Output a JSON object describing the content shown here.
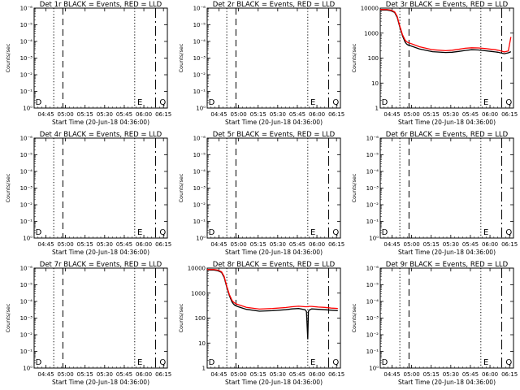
{
  "figure": {
    "background": "#ffffff",
    "colors": {
      "events": "#000000",
      "lld": "#ff0000"
    }
  },
  "chart_data": [
    {
      "type": "line",
      "title": "Det 1r BLACK = Events, RED = LLD",
      "xlabel": "Start Time (20-Jun-18 04:36:00)",
      "ylabel": "Counts/sec",
      "xtick_labels": [
        "04:45",
        "05:00",
        "05:15",
        "05:30",
        "05:45",
        "06:00",
        "06:15"
      ],
      "x_range_minutes": [
        0,
        102
      ],
      "y_scale": "log",
      "ytick_labels": [
        "10⁰",
        "10⁻¹",
        "10⁻²",
        "10⁻³",
        "10⁻⁴",
        "10⁻⁵",
        "10⁻⁶"
      ],
      "ylim": [
        1e-06,
        1.0
      ],
      "vlines": [
        {
          "style": "dotted",
          "x": 15
        },
        {
          "style": "dashed",
          "x": 22
        },
        {
          "style": "dotted",
          "x": 77
        },
        {
          "style": "longdash",
          "x": 93
        }
      ],
      "markers": [
        {
          "label": "D",
          "x": 1
        },
        {
          "label": "E",
          "x": 79
        },
        {
          "label": "Q",
          "x": 96
        }
      ],
      "series": []
    },
    {
      "type": "line",
      "title": "Det 2r BLACK = Events, RED = LLD",
      "xlabel": "Start Time (20-Jun-18 04:36:00)",
      "ylabel": "Counts/sec",
      "xtick_labels": [
        "04:45",
        "05:00",
        "05:15",
        "05:30",
        "05:45",
        "06:00",
        "06:15"
      ],
      "x_range_minutes": [
        0,
        102
      ],
      "y_scale": "log",
      "ytick_labels": [
        "10⁰",
        "10⁻¹",
        "10⁻²",
        "10⁻³",
        "10⁻⁴",
        "10⁻⁵",
        "10⁻⁶"
      ],
      "ylim": [
        1e-06,
        1.0
      ],
      "vlines": [
        {
          "style": "dotted",
          "x": 15
        },
        {
          "style": "dashed",
          "x": 22
        },
        {
          "style": "dotted",
          "x": 77
        },
        {
          "style": "longdash",
          "x": 93
        }
      ],
      "markers": [
        {
          "label": "D",
          "x": 1
        },
        {
          "label": "E",
          "x": 79
        },
        {
          "label": "Q",
          "x": 96
        }
      ],
      "series": []
    },
    {
      "type": "line",
      "title": "Det 3r BLACK = Events, RED = LLD",
      "xlabel": "Start Time (20-Jun-18 04:36:00)",
      "ylabel": "Counts/sec",
      "xtick_labels": [
        "04:45",
        "05:00",
        "05:15",
        "05:30",
        "05:45",
        "06:00",
        "06:15"
      ],
      "x_range_minutes": [
        0,
        102
      ],
      "y_scale": "log",
      "ytick_labels": [
        "1",
        "10",
        "100",
        "1000",
        "10000"
      ],
      "ylim": [
        1,
        12000
      ],
      "vlines": [
        {
          "style": "dotted",
          "x": 15
        },
        {
          "style": "dashed",
          "x": 22
        },
        {
          "style": "dotted",
          "x": 77
        },
        {
          "style": "longdash",
          "x": 93
        }
      ],
      "markers": [
        {
          "label": "D",
          "x": 1
        },
        {
          "label": "E",
          "x": 79
        },
        {
          "label": "Q",
          "x": 96
        }
      ],
      "series": [
        {
          "color": "#000000",
          "x": [
            0,
            5,
            8,
            11,
            13,
            15,
            17,
            19,
            20,
            21,
            23,
            30,
            40,
            50,
            55,
            60,
            65,
            70,
            75,
            80,
            85,
            88,
            90,
            93,
            95,
            98,
            100
          ],
          "y": [
            10000,
            10000,
            9500,
            8000,
            5000,
            2000,
            900,
            500,
            420,
            380,
            350,
            260,
            200,
            185,
            190,
            205,
            225,
            240,
            235,
            220,
            205,
            195,
            190,
            175,
            165,
            180,
            200
          ]
        },
        {
          "color": "#ff0000",
          "x": [
            0,
            5,
            8,
            11,
            13,
            15,
            17,
            19,
            20,
            21,
            23,
            30,
            40,
            50,
            55,
            60,
            65,
            70,
            75,
            80,
            85,
            88,
            90,
            93,
            95,
            98,
            100
          ],
          "y": [
            10500,
            10500,
            10000,
            8500,
            5500,
            2200,
            1000,
            600,
            520,
            480,
            440,
            320,
            240,
            220,
            230,
            250,
            275,
            290,
            285,
            270,
            250,
            240,
            230,
            210,
            195,
            215,
            800
          ]
        }
      ]
    },
    {
      "type": "line",
      "title": "Det 4r BLACK = Events, RED = LLD",
      "xlabel": "Start Time (20-Jun-18 04:36:00)",
      "ylabel": "Counts/sec",
      "xtick_labels": [
        "04:45",
        "05:00",
        "05:15",
        "05:30",
        "05:45",
        "06:00",
        "06:15"
      ],
      "x_range_minutes": [
        0,
        102
      ],
      "y_scale": "log",
      "ytick_labels": [
        "10⁰",
        "10⁻¹",
        "10⁻²",
        "10⁻³",
        "10⁻⁴",
        "10⁻⁵",
        "10⁻⁶"
      ],
      "ylim": [
        1e-06,
        1.0
      ],
      "vlines": [
        {
          "style": "dotted",
          "x": 15
        },
        {
          "style": "dashed",
          "x": 22
        },
        {
          "style": "dotted",
          "x": 77
        },
        {
          "style": "longdash",
          "x": 93
        }
      ],
      "markers": [
        {
          "label": "D",
          "x": 1
        },
        {
          "label": "E",
          "x": 79
        },
        {
          "label": "Q",
          "x": 96
        }
      ],
      "series": []
    },
    {
      "type": "line",
      "title": "Det 5r BLACK = Events, RED = LLD",
      "xlabel": "Start Time (20-Jun-18 04:36:00)",
      "ylabel": "Counts/sec",
      "xtick_labels": [
        "04:45",
        "05:00",
        "05:15",
        "05:30",
        "05:45",
        "06:00",
        "06:15"
      ],
      "x_range_minutes": [
        0,
        102
      ],
      "y_scale": "log",
      "ytick_labels": [
        "10⁰",
        "10⁻¹",
        "10⁻²",
        "10⁻³",
        "10⁻⁴",
        "10⁻⁵",
        "10⁻⁶"
      ],
      "ylim": [
        1e-06,
        1.0
      ],
      "vlines": [
        {
          "style": "dotted",
          "x": 15
        },
        {
          "style": "dashed",
          "x": 22
        },
        {
          "style": "dotted",
          "x": 77
        },
        {
          "style": "longdash",
          "x": 93
        }
      ],
      "markers": [
        {
          "label": "D",
          "x": 1
        },
        {
          "label": "E",
          "x": 79
        },
        {
          "label": "Q",
          "x": 96
        }
      ],
      "series": []
    },
    {
      "type": "line",
      "title": "Det 6r BLACK = Events, RED = LLD",
      "xlabel": "Start Time (20-Jun-18 04:36:00)",
      "ylabel": "Counts/sec",
      "xtick_labels": [
        "04:45",
        "05:00",
        "05:15",
        "05:30",
        "05:45",
        "06:00",
        "06:15"
      ],
      "x_range_minutes": [
        0,
        102
      ],
      "y_scale": "log",
      "ytick_labels": [
        "10⁰",
        "10⁻¹",
        "10⁻²",
        "10⁻³",
        "10⁻⁴",
        "10⁻⁵",
        "10⁻⁶"
      ],
      "ylim": [
        1e-06,
        1.0
      ],
      "vlines": [
        {
          "style": "dotted",
          "x": 15
        },
        {
          "style": "dashed",
          "x": 22
        },
        {
          "style": "dotted",
          "x": 77
        },
        {
          "style": "longdash",
          "x": 93
        }
      ],
      "markers": [
        {
          "label": "D",
          "x": 1
        },
        {
          "label": "E",
          "x": 79
        },
        {
          "label": "Q",
          "x": 96
        }
      ],
      "series": []
    },
    {
      "type": "line",
      "title": "Det 7r BLACK = Events, RED = LLD",
      "xlabel": "Start Time (20-Jun-18 04:36:00)",
      "ylabel": "Counts/sec",
      "xtick_labels": [
        "04:45",
        "05:00",
        "05:15",
        "05:30",
        "05:45",
        "06:00",
        "06:15"
      ],
      "x_range_minutes": [
        0,
        102
      ],
      "y_scale": "log",
      "ytick_labels": [
        "10⁰",
        "10⁻¹",
        "10⁻²",
        "10⁻³",
        "10⁻⁴",
        "10⁻⁵",
        "10⁻⁶"
      ],
      "ylim": [
        1e-06,
        1.0
      ],
      "vlines": [
        {
          "style": "dotted",
          "x": 15
        },
        {
          "style": "dashed",
          "x": 22
        },
        {
          "style": "dotted",
          "x": 77
        },
        {
          "style": "longdash",
          "x": 93
        }
      ],
      "markers": [
        {
          "label": "D",
          "x": 1
        },
        {
          "label": "E",
          "x": 79
        },
        {
          "label": "Q",
          "x": 96
        }
      ],
      "series": []
    },
    {
      "type": "line",
      "title": "Det 8r BLACK = Events, RED = LLD",
      "xlabel": "Start Time (20-Jun-18 04:36:00)",
      "ylabel": "Counts/sec",
      "xtick_labels": [
        "04:45",
        "05:00",
        "05:15",
        "05:30",
        "05:45",
        "06:00",
        "06:15"
      ],
      "x_range_minutes": [
        0,
        102
      ],
      "y_scale": "log",
      "ytick_labels": [
        "1",
        "10",
        "100",
        "1000",
        "10000"
      ],
      "ylim": [
        1,
        12000
      ],
      "vlines": [
        {
          "style": "dotted",
          "x": 15
        },
        {
          "style": "dashed",
          "x": 22
        },
        {
          "style": "dotted",
          "x": 77
        },
        {
          "style": "longdash",
          "x": 93
        }
      ],
      "markers": [
        {
          "label": "D",
          "x": 1
        },
        {
          "label": "E",
          "x": 79
        },
        {
          "label": "Q",
          "x": 96
        }
      ],
      "series": [
        {
          "color": "#000000",
          "x": [
            0,
            5,
            8,
            11,
            13,
            15,
            17,
            19,
            20,
            21,
            23,
            30,
            40,
            50,
            60,
            65,
            70,
            75,
            76,
            77,
            77.5,
            78,
            80,
            85,
            90,
            95,
            100
          ],
          "y": [
            10000,
            10000,
            9500,
            8000,
            5000,
            2000,
            900,
            500,
            420,
            370,
            330,
            250,
            210,
            220,
            240,
            260,
            270,
            240,
            200,
            15,
            200,
            230,
            260,
            250,
            240,
            230,
            220
          ]
        },
        {
          "color": "#ff0000",
          "x": [
            0,
            5,
            8,
            11,
            13,
            15,
            17,
            19,
            20,
            21,
            23,
            30,
            40,
            50,
            60,
            65,
            70,
            75,
            76,
            77,
            77.5,
            78,
            80,
            85,
            90,
            95,
            100
          ],
          "y": [
            10500,
            10500,
            10000,
            8500,
            5500,
            2200,
            1000,
            580,
            500,
            450,
            400,
            300,
            255,
            270,
            295,
            320,
            335,
            320,
            320,
            320,
            320,
            330,
            330,
            310,
            300,
            280,
            270
          ]
        }
      ]
    },
    {
      "type": "line",
      "title": "Det 9r BLACK = Events, RED = LLD",
      "xlabel": "Start Time (20-Jun-18 04:36:00)",
      "ylabel": "Counts/sec",
      "xtick_labels": [
        "04:45",
        "05:00",
        "05:15",
        "05:30",
        "05:45",
        "06:00",
        "06:15"
      ],
      "x_range_minutes": [
        0,
        102
      ],
      "y_scale": "log",
      "ytick_labels": [
        "10⁰",
        "10⁻¹",
        "10⁻²",
        "10⁻³",
        "10⁻⁴",
        "10⁻⁵",
        "10⁻⁶"
      ],
      "ylim": [
        1e-06,
        1.0
      ],
      "vlines": [
        {
          "style": "dotted",
          "x": 15
        },
        {
          "style": "dashed",
          "x": 22
        },
        {
          "style": "dotted",
          "x": 77
        },
        {
          "style": "longdash",
          "x": 93
        }
      ],
      "markers": [
        {
          "label": "D",
          "x": 1
        },
        {
          "label": "E",
          "x": 79
        },
        {
          "label": "Q",
          "x": 96
        }
      ],
      "series": []
    }
  ]
}
